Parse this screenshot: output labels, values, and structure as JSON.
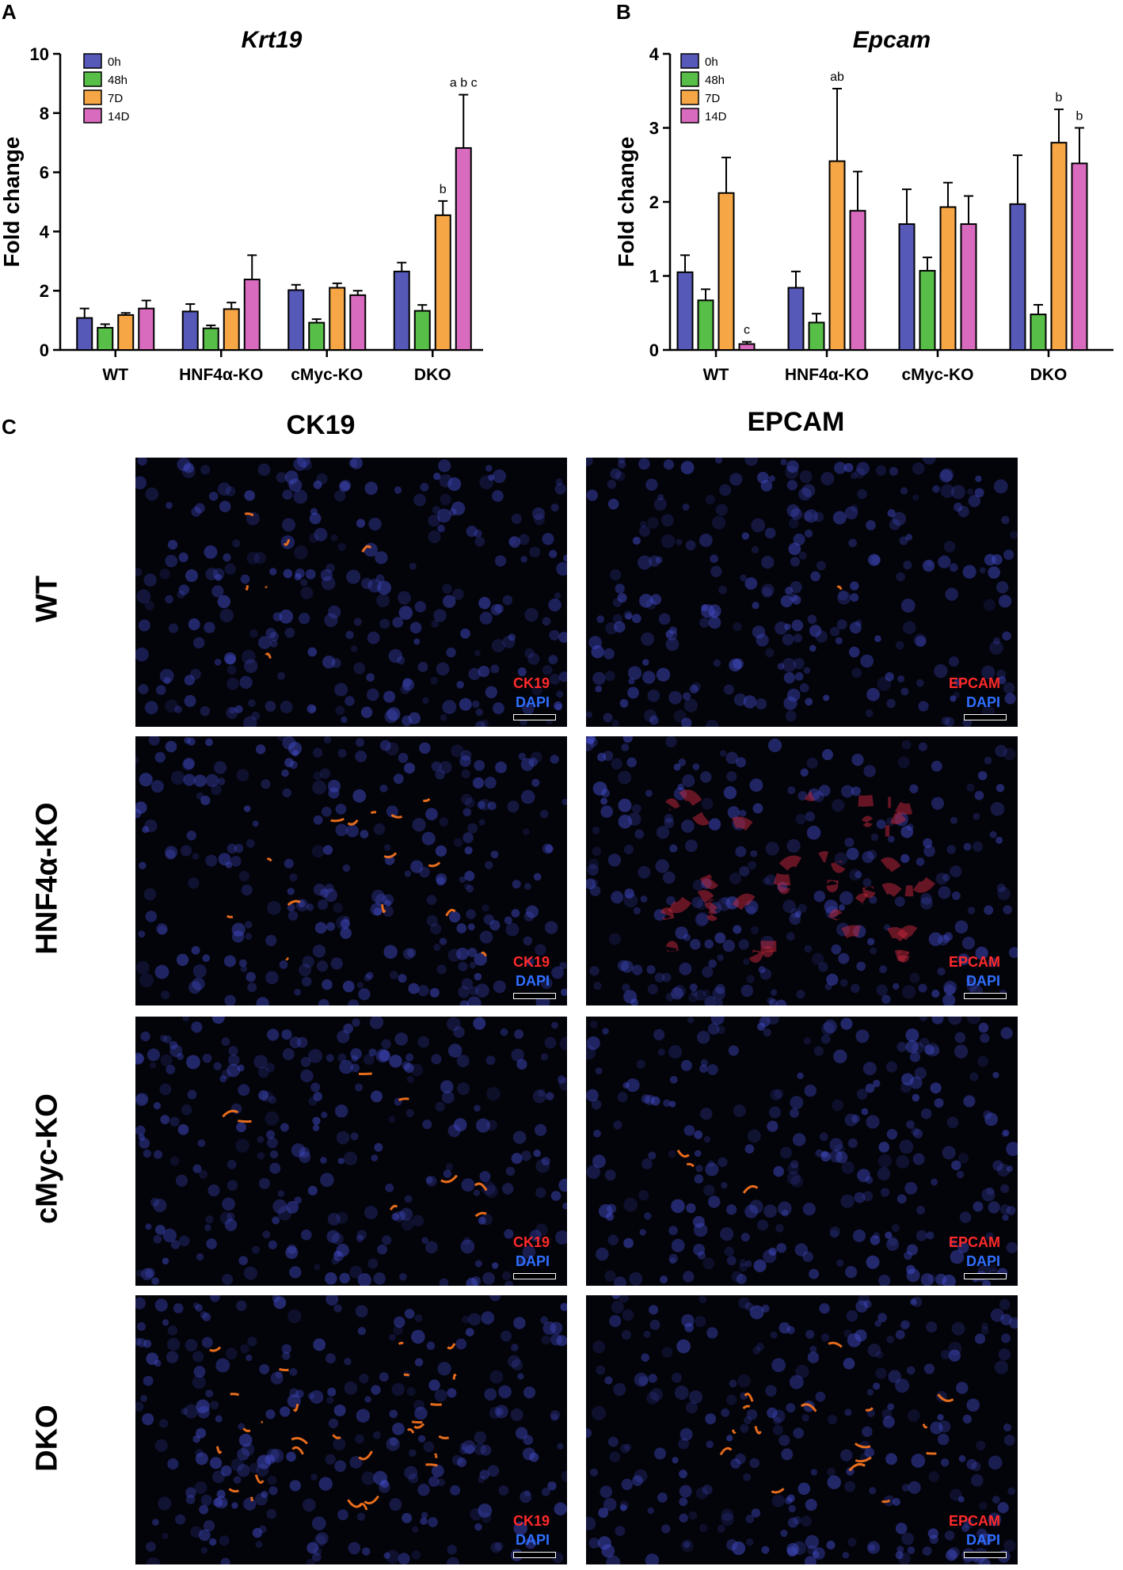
{
  "panels": {
    "a": "A",
    "b": "B",
    "c": "C"
  },
  "chart_data": [
    {
      "type": "bar",
      "title": "Krt19",
      "ylabel": "Fold change",
      "xlabel": "",
      "ylim": [
        0,
        10
      ],
      "yticks": [
        "0",
        "2",
        "4",
        "6",
        "8",
        "10"
      ],
      "categories": [
        "WT",
        "HNF4α-KO",
        "cMyc-KO",
        "DKO"
      ],
      "legend": [
        "0h",
        "48h",
        "7D",
        "14D"
      ],
      "legend_position": "top-left",
      "colors": [
        "#5659b8",
        "#57bf47",
        "#f6a645",
        "#d96bbf"
      ],
      "series": [
        {
          "name": "0h",
          "values": [
            1.08,
            1.3,
            2.02,
            2.65
          ],
          "errors": [
            0.32,
            0.25,
            0.18,
            0.3
          ]
        },
        {
          "name": "48h",
          "values": [
            0.75,
            0.73,
            0.92,
            1.32
          ],
          "errors": [
            0.12,
            0.1,
            0.12,
            0.2
          ]
        },
        {
          "name": "7D",
          "values": [
            1.18,
            1.38,
            2.1,
            4.55
          ],
          "errors": [
            0.07,
            0.22,
            0.15,
            0.48
          ]
        },
        {
          "name": "14D",
          "values": [
            1.4,
            2.38,
            1.85,
            6.82
          ],
          "errors": [
            0.27,
            0.82,
            0.15,
            1.8
          ]
        }
      ],
      "annotations": [
        {
          "category": 3,
          "series": 2,
          "text": "b"
        },
        {
          "category": 3,
          "series": 3,
          "text": "a b c"
        }
      ]
    },
    {
      "type": "bar",
      "title": "Epcam",
      "ylabel": "Fold change",
      "xlabel": "",
      "ylim": [
        0,
        4
      ],
      "yticks": [
        "0",
        "1",
        "2",
        "3",
        "4"
      ],
      "categories": [
        "WT",
        "HNF4α-KO",
        "cMyc-KO",
        "DKO"
      ],
      "legend": [
        "0h",
        "48h",
        "7D",
        "14D"
      ],
      "legend_position": "top-left",
      "colors": [
        "#5659b8",
        "#57bf47",
        "#f6a645",
        "#d96bbf"
      ],
      "series": [
        {
          "name": "0h",
          "values": [
            1.05,
            0.84,
            1.7,
            1.97
          ],
          "errors": [
            0.23,
            0.22,
            0.47,
            0.66
          ]
        },
        {
          "name": "48h",
          "values": [
            0.67,
            0.37,
            1.07,
            0.48
          ],
          "errors": [
            0.15,
            0.12,
            0.18,
            0.13
          ]
        },
        {
          "name": "7D",
          "values": [
            2.12,
            2.55,
            1.93,
            2.8
          ],
          "errors": [
            0.48,
            0.98,
            0.33,
            0.45
          ]
        },
        {
          "name": "14D",
          "values": [
            0.08,
            1.88,
            1.7,
            2.52
          ],
          "errors": [
            0.03,
            0.53,
            0.38,
            0.48
          ]
        }
      ],
      "annotations": [
        {
          "category": 0,
          "series": 3,
          "text": "c"
        },
        {
          "category": 1,
          "series": 2,
          "text": "ab"
        },
        {
          "category": 3,
          "series": 2,
          "text": "b"
        },
        {
          "category": 3,
          "series": 3,
          "text": "b"
        }
      ]
    }
  ],
  "micrographs": {
    "columns": [
      "CK19",
      "EPCAM"
    ],
    "rows": [
      "WT",
      "HNF4α-KO",
      "cMyc-KO",
      "DKO"
    ],
    "marker_labels": [
      "CK19",
      "EPCAM"
    ],
    "counterstain": "DAPI",
    "colors": {
      "marker": "#ff2a2a",
      "dapi": "#2f6fff"
    }
  }
}
